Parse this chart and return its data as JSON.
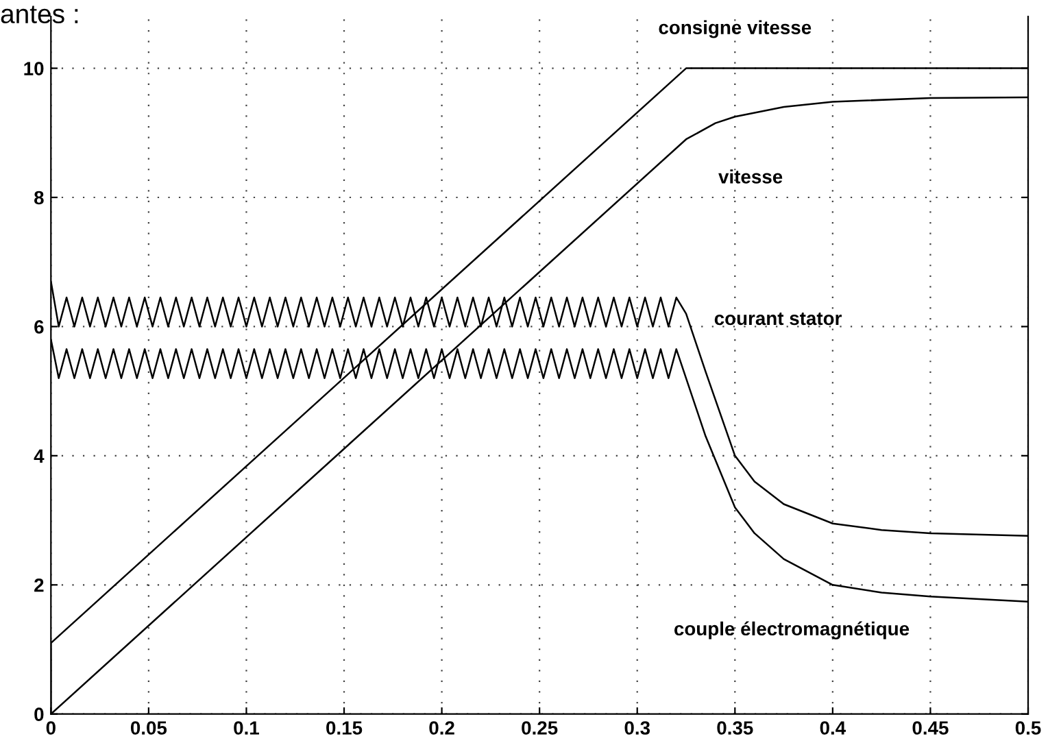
{
  "chart_data": {
    "type": "line",
    "xlim": [
      0,
      0.5
    ],
    "ylim": [
      0,
      10.8
    ],
    "xticks": [
      0,
      0.05,
      0.1,
      0.15,
      0.2,
      0.25,
      0.3,
      0.35,
      0.4,
      0.45,
      0.5
    ],
    "yticks": [
      0,
      2,
      4,
      6,
      8,
      10
    ],
    "grid": true,
    "line_style": "solid",
    "marker": "none",
    "series": [
      {
        "color": "#000000",
        "x": [
          0,
          0,
          0.325,
          0.5
        ],
        "values": [
          0,
          1.1,
          10,
          10
        ]
      },
      {
        "color": "#000000",
        "x": [
          0,
          0.325,
          0.34,
          0.35,
          0.375,
          0.4,
          0.45,
          0.5
        ],
        "values": [
          0,
          8.9,
          9.15,
          9.25,
          9.4,
          9.48,
          9.54,
          9.55
        ]
      },
      {
        "color": "#000000",
        "x": [
          0,
          0.004,
          0.008,
          0.012,
          0.016,
          0.02,
          0.024,
          0.028,
          0.032,
          0.036,
          0.04,
          0.044,
          0.048,
          0.052,
          0.056,
          0.06,
          0.064,
          0.068,
          0.072,
          0.076,
          0.08,
          0.084,
          0.088,
          0.092,
          0.096,
          0.1,
          0.104,
          0.108,
          0.112,
          0.116,
          0.12,
          0.124,
          0.128,
          0.132,
          0.136,
          0.14,
          0.144,
          0.148,
          0.152,
          0.156,
          0.16,
          0.164,
          0.168,
          0.172,
          0.176,
          0.18,
          0.184,
          0.188,
          0.192,
          0.196,
          0.2,
          0.204,
          0.208,
          0.212,
          0.216,
          0.22,
          0.224,
          0.228,
          0.232,
          0.236,
          0.24,
          0.244,
          0.248,
          0.252,
          0.256,
          0.26,
          0.264,
          0.268,
          0.272,
          0.276,
          0.28,
          0.284,
          0.288,
          0.292,
          0.296,
          0.3,
          0.304,
          0.308,
          0.312,
          0.316,
          0.32,
          0.325,
          0.335,
          0.35,
          0.36,
          0.375,
          0.4,
          0.425,
          0.45,
          0.5
        ],
        "values": [
          6.7,
          6.0,
          6.45,
          6.0,
          6.45,
          6.0,
          6.45,
          6.0,
          6.45,
          6.0,
          6.45,
          6.0,
          6.45,
          6.0,
          6.45,
          6.0,
          6.45,
          6.0,
          6.45,
          6.0,
          6.45,
          6.0,
          6.45,
          6.0,
          6.45,
          6.0,
          6.45,
          6.0,
          6.45,
          6.0,
          6.45,
          6.0,
          6.45,
          6.0,
          6.45,
          6.0,
          6.45,
          6.0,
          6.45,
          6.0,
          6.45,
          6.0,
          6.45,
          6.0,
          6.45,
          6.0,
          6.45,
          6.0,
          6.45,
          6.0,
          6.45,
          6.0,
          6.45,
          6.0,
          6.45,
          6.0,
          6.45,
          6.0,
          6.45,
          6.0,
          6.45,
          6.0,
          6.45,
          6.0,
          6.45,
          6.0,
          6.45,
          6.0,
          6.45,
          6.0,
          6.45,
          6.0,
          6.45,
          6.0,
          6.45,
          6.0,
          6.45,
          6.0,
          6.45,
          6.0,
          6.45,
          6.2,
          5.3,
          4.0,
          3.6,
          3.25,
          2.95,
          2.85,
          2.8,
          2.76
        ]
      },
      {
        "color": "#000000",
        "x": [
          0,
          0.004,
          0.008,
          0.012,
          0.016,
          0.02,
          0.024,
          0.028,
          0.032,
          0.036,
          0.04,
          0.044,
          0.048,
          0.052,
          0.056,
          0.06,
          0.064,
          0.068,
          0.072,
          0.076,
          0.08,
          0.084,
          0.088,
          0.092,
          0.096,
          0.1,
          0.104,
          0.108,
          0.112,
          0.116,
          0.12,
          0.124,
          0.128,
          0.132,
          0.136,
          0.14,
          0.144,
          0.148,
          0.152,
          0.156,
          0.16,
          0.164,
          0.168,
          0.172,
          0.176,
          0.18,
          0.184,
          0.188,
          0.192,
          0.196,
          0.2,
          0.204,
          0.208,
          0.212,
          0.216,
          0.22,
          0.224,
          0.228,
          0.232,
          0.236,
          0.24,
          0.244,
          0.248,
          0.252,
          0.256,
          0.26,
          0.264,
          0.268,
          0.272,
          0.276,
          0.28,
          0.284,
          0.288,
          0.292,
          0.296,
          0.3,
          0.304,
          0.308,
          0.312,
          0.316,
          0.32,
          0.325,
          0.335,
          0.35,
          0.36,
          0.375,
          0.4,
          0.425,
          0.45,
          0.5
        ],
        "values": [
          5.8,
          5.2,
          5.65,
          5.2,
          5.65,
          5.2,
          5.65,
          5.2,
          5.65,
          5.2,
          5.65,
          5.2,
          5.65,
          5.2,
          5.65,
          5.2,
          5.65,
          5.2,
          5.65,
          5.2,
          5.65,
          5.2,
          5.65,
          5.2,
          5.65,
          5.2,
          5.65,
          5.2,
          5.65,
          5.2,
          5.65,
          5.2,
          5.65,
          5.2,
          5.65,
          5.2,
          5.65,
          5.2,
          5.65,
          5.2,
          5.65,
          5.2,
          5.65,
          5.2,
          5.65,
          5.2,
          5.65,
          5.2,
          5.65,
          5.2,
          5.65,
          5.2,
          5.65,
          5.2,
          5.65,
          5.2,
          5.65,
          5.2,
          5.65,
          5.2,
          5.65,
          5.2,
          5.65,
          5.2,
          5.65,
          5.2,
          5.65,
          5.2,
          5.65,
          5.2,
          5.65,
          5.2,
          5.65,
          5.2,
          5.65,
          5.2,
          5.65,
          5.2,
          5.65,
          5.2,
          5.65,
          5.2,
          4.3,
          3.2,
          2.8,
          2.4,
          2.0,
          1.88,
          1.82,
          1.74
        ]
      }
    ],
    "annotations": [
      "antes :",
      "consigne vitesse",
      "vitesse",
      "courant stator",
      "couple électromagnétique"
    ]
  }
}
